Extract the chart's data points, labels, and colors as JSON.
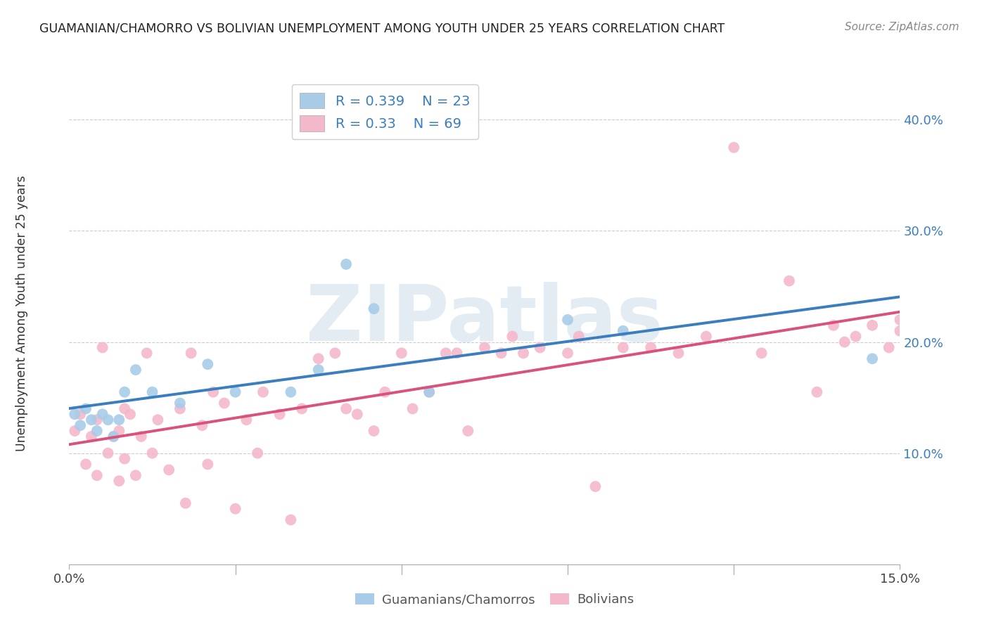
{
  "title": "GUAMANIAN/CHAMORRO VS BOLIVIAN UNEMPLOYMENT AMONG YOUTH UNDER 25 YEARS CORRELATION CHART",
  "source": "Source: ZipAtlas.com",
  "ylabel": "Unemployment Among Youth under 25 years",
  "xlim": [
    0.0,
    0.15
  ],
  "ylim": [
    0.0,
    0.44
  ],
  "xticks": [
    0.0,
    0.03,
    0.06,
    0.09,
    0.12,
    0.15
  ],
  "xtick_labels": [
    "0.0%",
    "",
    "",
    "",
    "",
    "15.0%"
  ],
  "ytick_labels": [
    "10.0%",
    "20.0%",
    "30.0%",
    "40.0%"
  ],
  "yticks": [
    0.1,
    0.2,
    0.3,
    0.4
  ],
  "blue_R": 0.339,
  "blue_N": 23,
  "pink_R": 0.33,
  "pink_N": 69,
  "blue_color": "#a8cce8",
  "pink_color": "#f4b8cb",
  "blue_line_color": "#3a7ebf",
  "pink_line_color": "#d9527a",
  "legend_label_blue": "Guamanians/Chamorros",
  "legend_label_pink": "Bolivians",
  "watermark": "ZIPatlas",
  "blue_points_x": [
    0.001,
    0.002,
    0.003,
    0.004,
    0.005,
    0.006,
    0.007,
    0.008,
    0.009,
    0.01,
    0.012,
    0.015,
    0.02,
    0.025,
    0.03,
    0.04,
    0.045,
    0.05,
    0.055,
    0.065,
    0.09,
    0.1,
    0.145
  ],
  "blue_points_y": [
    0.135,
    0.125,
    0.14,
    0.13,
    0.12,
    0.135,
    0.13,
    0.115,
    0.13,
    0.155,
    0.175,
    0.155,
    0.145,
    0.18,
    0.155,
    0.155,
    0.175,
    0.27,
    0.23,
    0.155,
    0.22,
    0.21,
    0.185
  ],
  "pink_points_x": [
    0.001,
    0.002,
    0.003,
    0.004,
    0.005,
    0.005,
    0.006,
    0.007,
    0.008,
    0.009,
    0.009,
    0.01,
    0.01,
    0.011,
    0.012,
    0.013,
    0.014,
    0.015,
    0.016,
    0.018,
    0.02,
    0.021,
    0.022,
    0.024,
    0.025,
    0.026,
    0.028,
    0.03,
    0.032,
    0.034,
    0.035,
    0.038,
    0.04,
    0.042,
    0.045,
    0.048,
    0.05,
    0.052,
    0.055,
    0.057,
    0.06,
    0.062,
    0.065,
    0.068,
    0.07,
    0.072,
    0.075,
    0.078,
    0.08,
    0.082,
    0.085,
    0.09,
    0.092,
    0.095,
    0.1,
    0.105,
    0.11,
    0.115,
    0.12,
    0.125,
    0.13,
    0.135,
    0.138,
    0.14,
    0.142,
    0.145,
    0.148,
    0.15,
    0.15
  ],
  "pink_points_y": [
    0.12,
    0.135,
    0.09,
    0.115,
    0.08,
    0.13,
    0.195,
    0.1,
    0.115,
    0.075,
    0.12,
    0.095,
    0.14,
    0.135,
    0.08,
    0.115,
    0.19,
    0.1,
    0.13,
    0.085,
    0.14,
    0.055,
    0.19,
    0.125,
    0.09,
    0.155,
    0.145,
    0.05,
    0.13,
    0.1,
    0.155,
    0.135,
    0.04,
    0.14,
    0.185,
    0.19,
    0.14,
    0.135,
    0.12,
    0.155,
    0.19,
    0.14,
    0.155,
    0.19,
    0.19,
    0.12,
    0.195,
    0.19,
    0.205,
    0.19,
    0.195,
    0.19,
    0.205,
    0.07,
    0.195,
    0.195,
    0.19,
    0.205,
    0.375,
    0.19,
    0.255,
    0.155,
    0.215,
    0.2,
    0.205,
    0.215,
    0.195,
    0.21,
    0.22
  ]
}
